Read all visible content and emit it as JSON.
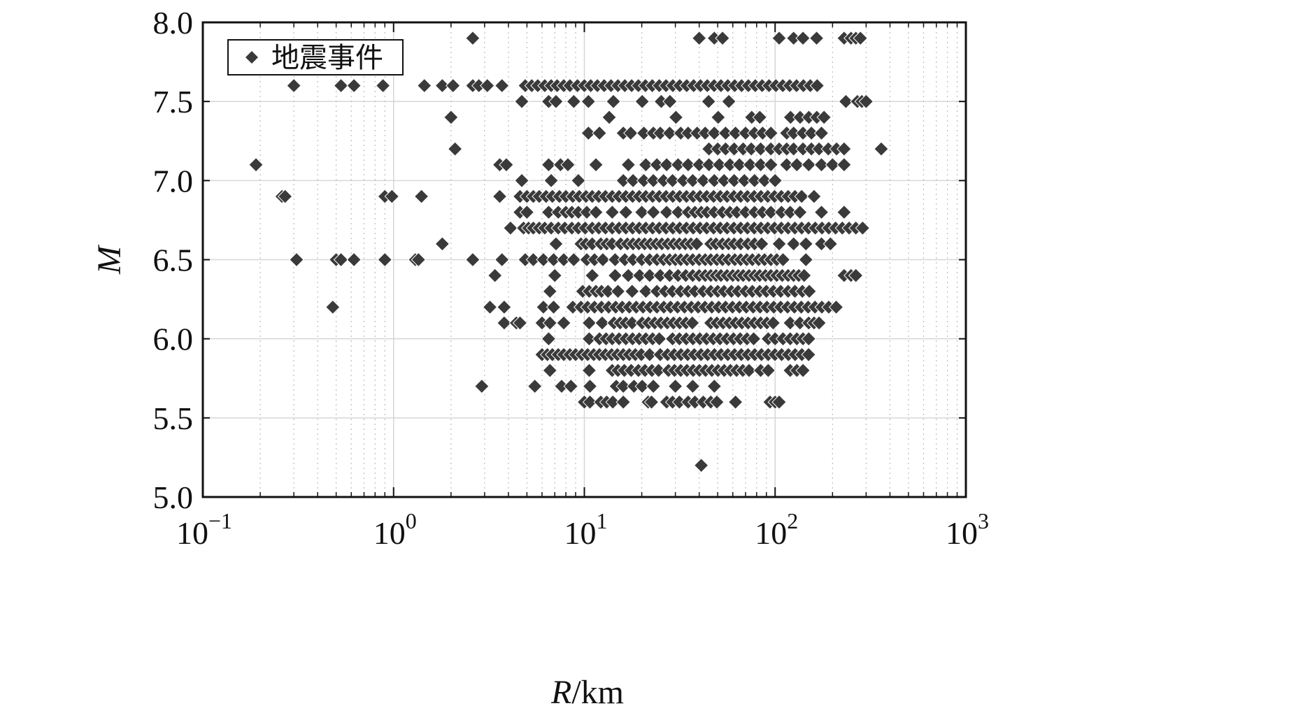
{
  "chart_data": {
    "type": "scatter",
    "title": "",
    "xlabel_main": "R",
    "xlabel_unit": "/km",
    "ylabel": "M",
    "xscale": "log",
    "xlim": [
      0.1,
      1000
    ],
    "ylim": [
      5.0,
      8.0
    ],
    "grid": true,
    "legend_position": "top-left",
    "x_ticks": [
      {
        "base": "10",
        "exp": "−1"
      },
      {
        "base": "10",
        "exp": "0"
      },
      {
        "base": "10",
        "exp": "1"
      },
      {
        "base": "10",
        "exp": "2"
      },
      {
        "base": "10",
        "exp": "3"
      }
    ],
    "y_ticks": [
      "5.0",
      "5.5",
      "6.0",
      "6.5",
      "7.0",
      "7.5",
      "8.0"
    ],
    "marker_color": "#3a3a3a",
    "series": [
      {
        "name": "地震事件",
        "rows": [
          {
            "y": 7.9,
            "x": [
              2.6,
              40,
              48,
              53,
              105,
              125,
              140,
              165,
              230,
              250,
              265,
              280
            ]
          },
          {
            "y": 7.6,
            "x": [
              0.3,
              0.53,
              0.62,
              0.88,
              1.45,
              1.8,
              2.05,
              2.6,
              2.8,
              3.1,
              3.7,
              4.9,
              5.3,
              5.7,
              6.2,
              6.7,
              7.2,
              7.8,
              8.4,
              9.2,
              10.0,
              10.8,
              11.7,
              12.7,
              13.8,
              15.0,
              16.3,
              17.7,
              19.2,
              20.9,
              22.7,
              24.7,
              26.8,
              29.1,
              31.6,
              34.4,
              37.4,
              40.6,
              44.1,
              47.9,
              52.0,
              56.5,
              61.4,
              66.7,
              72.4,
              78.7,
              85.5,
              92.9,
              100.9,
              109.7,
              119.2,
              129.5,
              140.7,
              152.9,
              166.1
            ]
          },
          {
            "y": 7.5,
            "x": [
              4.7,
              6.5,
              7.1,
              8.8,
              10.5,
              14.2,
              20.1,
              25.3,
              28.1,
              44.8,
              57.2,
              235,
              270,
              285,
              300
            ]
          },
          {
            "y": 7.4,
            "x": [
              2.0,
              13.5,
              30.2,
              50.3,
              75.4,
              83.1,
              120.5,
              135.2,
              150.3,
              165.4,
              180.5
            ]
          },
          {
            "y": 7.3,
            "x": [
              10.5,
              12.0,
              16.0,
              17.5,
              20.5,
              23.0,
              25.0,
              28.0,
              32.0,
              35.0,
              39.0,
              43.0,
              48.0,
              55.0,
              62.0,
              70.0,
              78.0,
              86.0,
              95.0,
              115.0,
              125.0,
              140.0,
              155.0,
              175.0
            ]
          },
          {
            "y": 7.2,
            "x": [
              2.1,
              45.0,
              50.0,
              55.0,
              61.0,
              68.0,
              75.0,
              84.0,
              95.0,
              105.0,
              115.0,
              125.0,
              140.0,
              155.0,
              170.0,
              190.0,
              210.0,
              230.0,
              360.0
            ]
          },
          {
            "y": 7.1,
            "x": [
              0.19,
              3.6,
              3.9,
              6.5,
              7.5,
              8.2,
              11.5,
              17.0,
              21.0,
              24.0,
              27.0,
              31.0,
              35.0,
              40.0,
              45.0,
              51.0,
              58.0,
              65.0,
              74.0,
              84.0,
              95.0,
              115.0,
              130.0,
              150.0,
              175.0,
              200.0,
              230.0
            ]
          },
          {
            "y": 7.0,
            "x": [
              4.7,
              6.7,
              9.3,
              16.0,
              18.0,
              20.5,
              23.0,
              26.0,
              29.0,
              33.0,
              37.0,
              42.0,
              48.0,
              54.0,
              61.0,
              69.0,
              78.0,
              88.0,
              100.0
            ]
          },
          {
            "y": 6.9,
            "x": [
              0.26,
              0.27,
              0.9,
              0.98,
              1.4,
              3.6,
              4.6,
              5.0,
              5.4,
              5.8,
              6.3,
              6.8,
              7.4,
              8.0,
              8.7,
              9.4,
              10.2,
              11.0,
              11.9,
              12.9,
              14.0,
              15.2,
              16.5,
              17.9,
              19.4,
              21.0,
              22.8,
              24.7,
              26.8,
              29.1,
              31.6,
              34.3,
              37.2,
              40.4,
              43.8,
              47.6,
              51.6,
              56.0,
              60.8,
              66.0,
              71.6,
              77.7,
              84.3,
              91.5,
              99.3,
              107.8,
              117.0,
              127.0,
              137.8,
              160.0
            ]
          },
          {
            "y": 6.8,
            "x": [
              4.6,
              5.0,
              6.5,
              7.3,
              8.0,
              8.6,
              9.3,
              10.3,
              11.5,
              14.0,
              16.5,
              20.0,
              23.0,
              27.0,
              31.0,
              35.0,
              38.0,
              41.0,
              44.0,
              48.0,
              53.0,
              58.0,
              63.0,
              70.0,
              78.0,
              86.0,
              95.0,
              108.0,
              120.0,
              135.0,
              175.0,
              230.0
            ]
          },
          {
            "y": 6.7,
            "x": [
              4.1,
              4.8,
              5.1,
              5.4,
              5.8,
              6.2,
              6.7,
              7.3,
              7.9,
              8.6,
              9.3,
              10.1,
              11.0,
              11.9,
              12.9,
              14.0,
              15.2,
              16.5,
              17.9,
              19.4,
              21.0,
              22.8,
              24.7,
              26.8,
              29.1,
              31.6,
              34.3,
              37.2,
              40.4,
              43.8,
              47.6,
              51.6,
              56.0,
              60.8,
              66.0,
              71.6,
              77.7,
              84.3,
              91.5,
              99.3,
              107.8,
              117.0,
              127.0,
              137.8,
              149.6,
              162.3,
              176.1,
              191.1,
              207.4,
              225.0,
              244.2,
              265.0,
              287.6
            ]
          },
          {
            "y": 6.6,
            "x": [
              1.8,
              7.1,
              9.6,
              10.2,
              11.0,
              12.2,
              13.1,
              14.0,
              15.5,
              16.8,
              18.0,
              19.3,
              20.7,
              22.2,
              23.8,
              25.5,
              27.4,
              29.4,
              31.5,
              33.8,
              36.2,
              38.8,
              46.0,
              49.0,
              53.0,
              57.0,
              61.0,
              66.0,
              72.0,
              78.0,
              85.0,
              105.0,
              125.0,
              145.0,
              175.0,
              195.0
            ]
          },
          {
            "y": 6.5,
            "x": [
              0.31,
              0.5,
              0.53,
              0.62,
              0.9,
              1.3,
              1.35,
              2.6,
              3.7,
              4.9,
              5.4,
              6.1,
              6.9,
              7.8,
              8.8,
              10.3,
              11.3,
              12.5,
              14.5,
              16.3,
              18.0,
              20.0,
              22.0,
              24.0,
              26.0,
              28.0,
              30.0,
              32.0,
              34.5,
              37.0,
              40.0,
              43.0,
              46.0,
              49.5,
              53.0,
              57.0,
              61.5,
              66.0,
              71.0,
              76.0,
              82.0,
              88.0,
              95.0,
              102.0,
              110.0,
              145.0
            ]
          },
          {
            "y": 6.4,
            "x": [
              3.4,
              7.0,
              11.0,
              14.5,
              17.0,
              19.5,
              22.0,
              25.0,
              28.0,
              31.0,
              34.0,
              37.0,
              40.0,
              43.0,
              46.0,
              49.0,
              52.0,
              56.0,
              60.0,
              64.0,
              68.0,
              73.0,
              78.0,
              83.0,
              89.0,
              95.0,
              102.0,
              109.0,
              117.0,
              125.0,
              133.0,
              142.0,
              230.0,
              250.0,
              265.0
            ]
          },
          {
            "y": 6.3,
            "x": [
              6.6,
              9.8,
              10.6,
              11.5,
              12.3,
              13.3,
              15.0,
              17.8,
              21.0,
              24.0,
              26.5,
              29.0,
              32.0,
              35.0,
              38.0,
              42.0,
              46.0,
              50.0,
              54.0,
              59.0,
              64.0,
              70.0,
              76.0,
              83.0,
              90.0,
              98.0,
              107.0,
              117.0,
              127.0,
              139.0,
              151.0
            ]
          },
          {
            "y": 6.2,
            "x": [
              0.48,
              3.2,
              3.8,
              6.1,
              6.9,
              8.7,
              9.6,
              10.4,
              11.3,
              12.3,
              13.4,
              14.6,
              15.8,
              17.2,
              18.7,
              20.3,
              22.1,
              24.0,
              26.1,
              28.3,
              30.8,
              33.5,
              36.4,
              39.5,
              42.9,
              46.6,
              50.6,
              55.0,
              59.8,
              65.0,
              70.6,
              76.7,
              83.4,
              90.6,
              98.4,
              106.9,
              116.2,
              126.2,
              137.1,
              149.0,
              161.8,
              175.8,
              191.0,
              209.0
            ]
          },
          {
            "y": 6.1,
            "x": [
              3.8,
              4.4,
              4.6,
              6.0,
              6.6,
              7.8,
              10.6,
              12.4,
              14.3,
              15.4,
              16.5,
              17.8,
              20.1,
              21.7,
              23.4,
              25.2,
              27.2,
              29.3,
              31.6,
              34.1,
              36.8,
              46.0,
              49.5,
              53.4,
              57.6,
              62.1,
              67.0,
              72.2,
              77.9,
              84.0,
              90.6,
              97.7,
              120.0,
              135.0,
              150.0,
              160.0,
              170.0
            ]
          },
          {
            "y": 6.0,
            "x": [
              6.5,
              10.6,
              12.0,
              13.0,
              14.0,
              15.2,
              16.5,
              17.9,
              19.4,
              21.0,
              22.8,
              24.7,
              29.0,
              31.5,
              34.2,
              37.1,
              40.3,
              43.7,
              47.4,
              51.4,
              55.8,
              60.5,
              65.6,
              71.2,
              77.2,
              92.0,
              100.0,
              110.0,
              120.0,
              130.0,
              140.0,
              150.0
            ]
          },
          {
            "y": 5.9,
            "x": [
              6.0,
              6.4,
              6.8,
              7.3,
              7.8,
              8.4,
              9.0,
              9.7,
              10.4,
              11.2,
              12.0,
              12.9,
              13.9,
              14.9,
              16.0,
              17.2,
              18.5,
              19.9,
              22.0,
              25.0,
              27.3,
              29.6,
              32.1,
              34.8,
              37.7,
              40.9,
              44.3,
              48.1,
              52.1,
              56.5,
              61.3,
              66.5,
              72.1,
              78.2,
              84.8,
              92.0,
              99.8,
              108.2,
              117.4,
              127.3,
              138.1,
              149.8
            ]
          },
          {
            "y": 5.8,
            "x": [
              6.6,
              10.6,
              14.0,
              15.0,
              16.2,
              17.6,
              19.2,
              20.8,
              22.6,
              24.5,
              27.6,
              29.7,
              32.0,
              34.5,
              37.2,
              40.1,
              43.2,
              46.6,
              50.2,
              54.1,
              58.3,
              62.8,
              67.7,
              73.0,
              84.0,
              92.0,
              120.0,
              130.0,
              140.0
            ]
          },
          {
            "y": 5.7,
            "x": [
              2.9,
              5.5,
              7.6,
              8.5,
              10.7,
              14.7,
              16.0,
              18.2,
              20.1,
              23.0,
              30.0,
              37.0,
              48.0
            ]
          },
          {
            "y": 5.6,
            "x": [
              10.0,
              10.7,
              12.2,
              13.1,
              14.1,
              16.0,
              21.6,
              22.5,
              27.0,
              29.0,
              31.5,
              35.0,
              38.0,
              42.0,
              46.0,
              49.5,
              62.0,
              94.0,
              100.0,
              105.0
            ]
          },
          {
            "y": 5.2,
            "x": [
              41.0
            ]
          }
        ]
      }
    ]
  }
}
